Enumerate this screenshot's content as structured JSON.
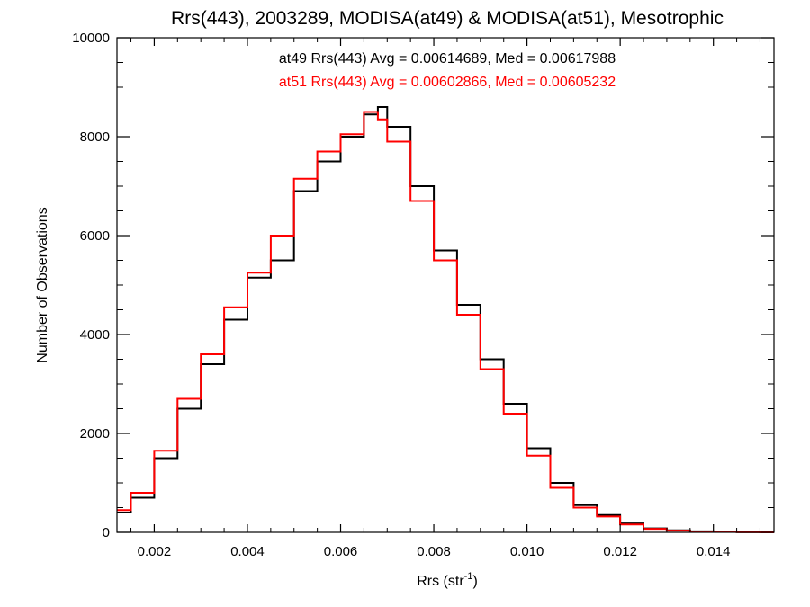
{
  "chart_data": {
    "type": "line",
    "title": "Rrs(443), 2003289, MODISA(at49) & MODISA(at51), Mesotrophic",
    "xlabel": "Rrs (str",
    "xlabel_sup": "-1",
    "xlabel_close": ")",
    "ylabel": "Number of Observations",
    "xlim": [
      0.0012,
      0.0153
    ],
    "ylim": [
      0,
      10000
    ],
    "x_ticks": [
      0.002,
      0.004,
      0.006,
      0.008,
      0.01,
      0.012,
      0.014
    ],
    "x_tick_labels": [
      "0.002",
      "0.004",
      "0.006",
      "0.008",
      "0.010",
      "0.012",
      "0.014"
    ],
    "y_ticks": [
      0,
      2000,
      4000,
      6000,
      8000,
      10000
    ],
    "y_tick_labels": [
      "0",
      "2000",
      "4000",
      "6000",
      "8000",
      "10000"
    ],
    "grid": false,
    "x": [
      0.0012,
      0.0015,
      0.002,
      0.0025,
      0.003,
      0.0035,
      0.004,
      0.0045,
      0.005,
      0.0055,
      0.006,
      0.0065,
      0.0068,
      0.007,
      0.0075,
      0.008,
      0.0085,
      0.009,
      0.0095,
      0.01,
      0.0105,
      0.011,
      0.0115,
      0.012,
      0.0125,
      0.013,
      0.0135,
      0.014,
      0.0145,
      0.015,
      0.0153
    ],
    "series": [
      {
        "name": "at49",
        "color": "#000000",
        "values": [
          400,
          700,
          1500,
          2500,
          3400,
          4300,
          5150,
          5500,
          6900,
          7500,
          8000,
          8450,
          8600,
          8200,
          7000,
          5700,
          4600,
          3500,
          2600,
          1700,
          1000,
          550,
          350,
          180,
          80,
          40,
          20,
          10,
          5,
          2,
          1
        ]
      },
      {
        "name": "at51",
        "color": "#ff0000",
        "values": [
          450,
          800,
          1650,
          2700,
          3600,
          4550,
          5250,
          6000,
          7150,
          7700,
          8050,
          8500,
          8350,
          7900,
          6700,
          5500,
          4400,
          3300,
          2400,
          1550,
          900,
          500,
          320,
          160,
          70,
          35,
          18,
          9,
          4,
          2,
          1
        ]
      }
    ]
  },
  "stats": {
    "at49": "at49 Rrs(443) Avg = 0.00614689, Med = 0.00617988",
    "at51": "at51 Rrs(443) Avg = 0.00602866, Med = 0.00605232"
  }
}
